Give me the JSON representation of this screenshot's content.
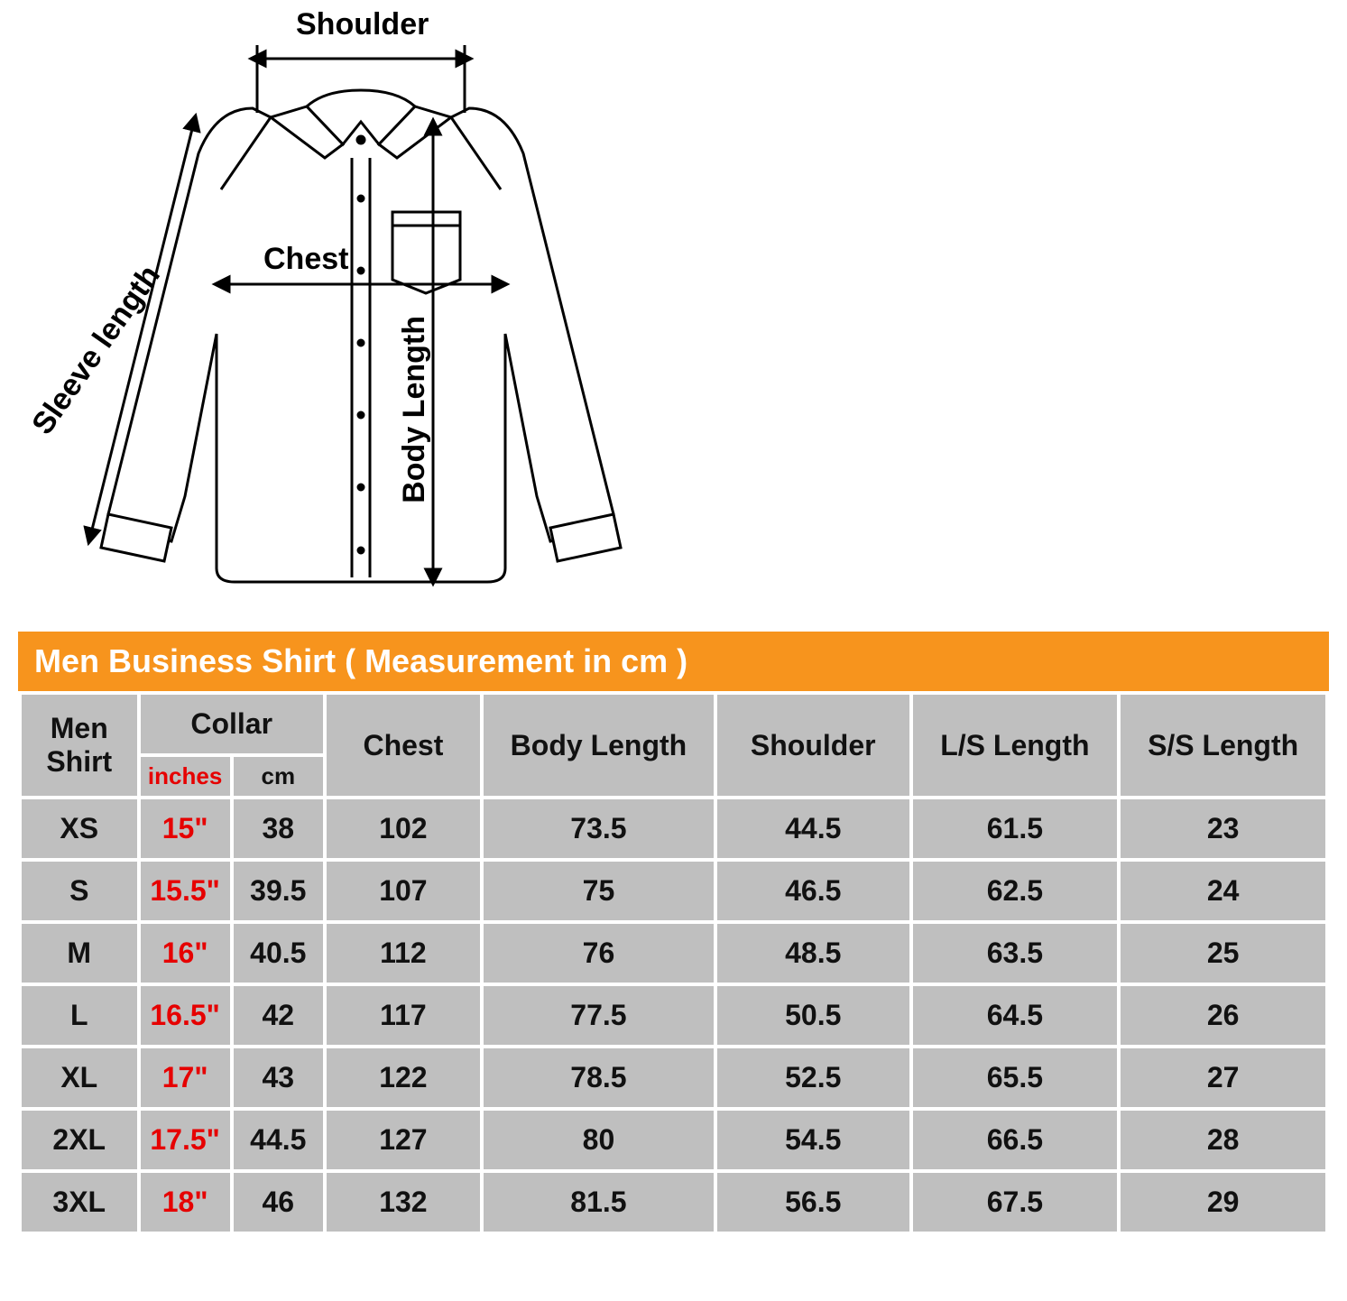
{
  "diagram": {
    "labels": {
      "shoulder": "Shoulder",
      "chest": "Chest",
      "body_length": "Body Length",
      "sleeve_length": "Sleeve length"
    },
    "stroke": "#000000",
    "stroke_width": 3,
    "label_fontsize": 34,
    "label_fontweight": 700
  },
  "table": {
    "title": "Men Business Shirt ( Measurement in cm )",
    "title_bg": "#f7941d",
    "title_color": "#ffffff",
    "cell_bg": "#bfbfbf",
    "gap_color": "#ffffff",
    "text_color": "#111111",
    "inches_color": "#e60000",
    "header_fontsize": 32,
    "subheader_fontsize": 26,
    "cell_fontsize": 32,
    "headers": {
      "size": "Men Shirt",
      "collar": "Collar",
      "collar_in": "inches",
      "collar_cm": "cm",
      "chest": "Chest",
      "body": "Body Length",
      "shoulder": "Shoulder",
      "ls": "L/S Length",
      "ss": "S/S Length"
    },
    "rows": [
      {
        "size": "XS",
        "collar_in": "15\"",
        "collar_cm": "38",
        "chest": "102",
        "body": "73.5",
        "shoulder": "44.5",
        "ls": "61.5",
        "ss": "23"
      },
      {
        "size": "S",
        "collar_in": "15.5\"",
        "collar_cm": "39.5",
        "chest": "107",
        "body": "75",
        "shoulder": "46.5",
        "ls": "62.5",
        "ss": "24"
      },
      {
        "size": "M",
        "collar_in": "16\"",
        "collar_cm": "40.5",
        "chest": "112",
        "body": "76",
        "shoulder": "48.5",
        "ls": "63.5",
        "ss": "25"
      },
      {
        "size": "L",
        "collar_in": "16.5\"",
        "collar_cm": "42",
        "chest": "117",
        "body": "77.5",
        "shoulder": "50.5",
        "ls": "64.5",
        "ss": "26"
      },
      {
        "size": "XL",
        "collar_in": "17\"",
        "collar_cm": "43",
        "chest": "122",
        "body": "78.5",
        "shoulder": "52.5",
        "ls": "65.5",
        "ss": "27"
      },
      {
        "size": "2XL",
        "collar_in": "17.5\"",
        "collar_cm": "44.5",
        "chest": "127",
        "body": "80",
        "shoulder": "54.5",
        "ls": "66.5",
        "ss": "28"
      },
      {
        "size": "3XL",
        "collar_in": "18\"",
        "collar_cm": "46",
        "chest": "132",
        "body": "81.5",
        "shoulder": "56.5",
        "ls": "67.5",
        "ss": "29"
      }
    ]
  }
}
